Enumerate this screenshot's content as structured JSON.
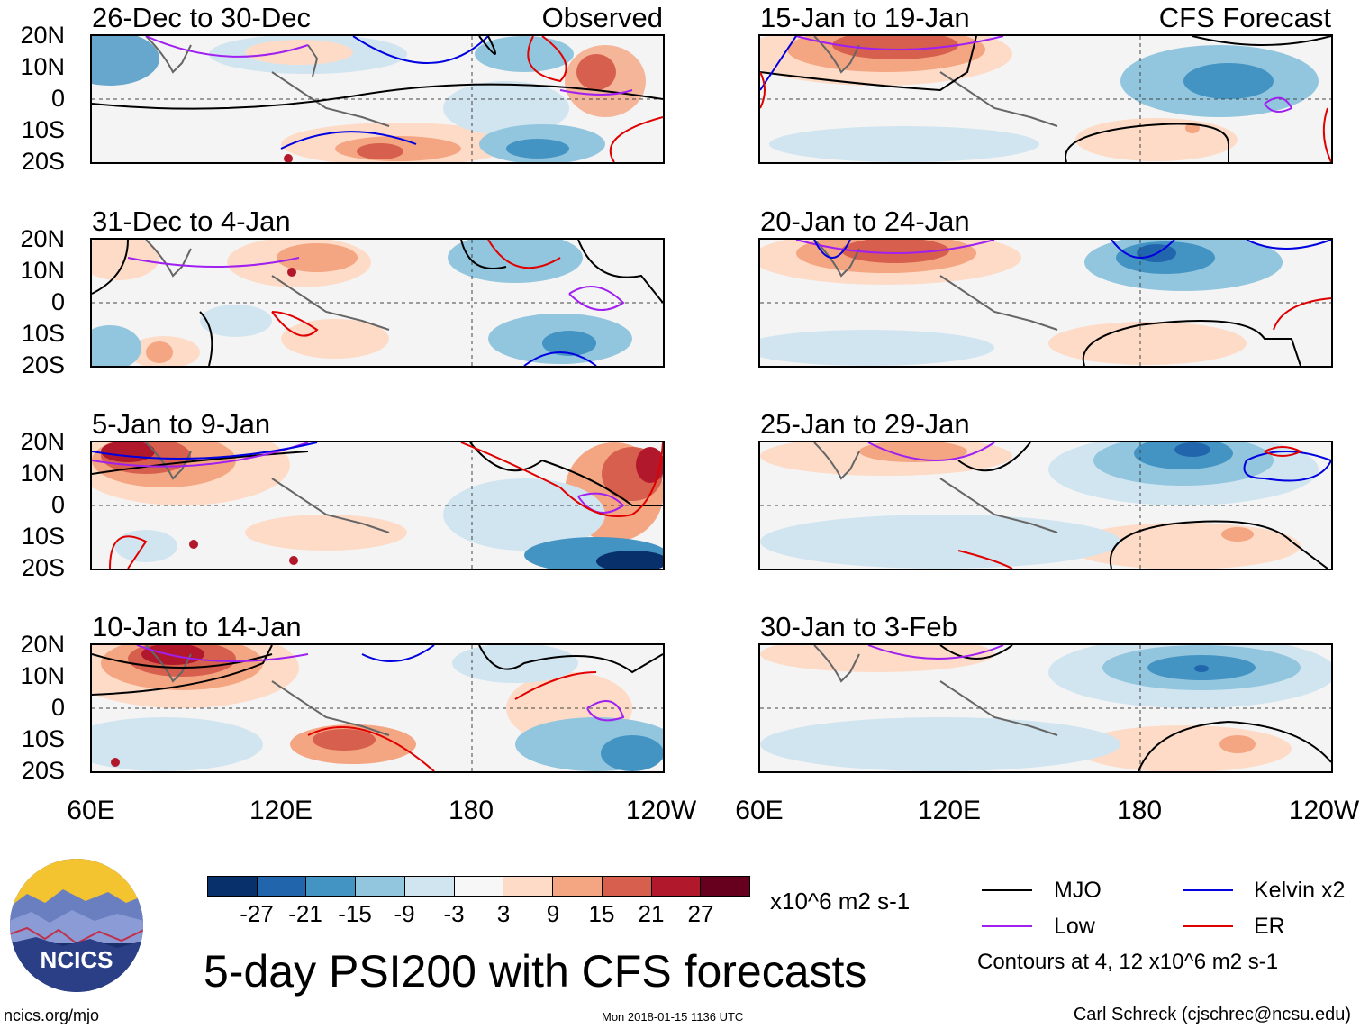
{
  "colors": {
    "mjo": "#000000",
    "low": "#a020f0",
    "kelvin": "#0000e0",
    "er": "#e00000",
    "land": "#666666",
    "background": "#f4f4f4"
  },
  "panels": [
    {
      "title": "26-Dec to 30-Dec",
      "corner": "Observed"
    },
    {
      "title": "31-Dec to 4-Jan",
      "corner": ""
    },
    {
      "title": "5-Jan to 9-Jan",
      "corner": ""
    },
    {
      "title": "10-Jan to 14-Jan",
      "corner": ""
    },
    {
      "title": "15-Jan to 19-Jan",
      "corner": "CFS Forecast"
    },
    {
      "title": "20-Jan to 24-Jan",
      "corner": ""
    },
    {
      "title": "25-Jan to 29-Jan",
      "corner": ""
    },
    {
      "title": "30-Jan to 3-Feb",
      "corner": ""
    }
  ],
  "lat_labels": [
    "20N",
    "10N",
    "0",
    "10S",
    "20S"
  ],
  "lon_labels": [
    "60E",
    "120E",
    "180",
    "120W"
  ],
  "colorbar": {
    "colors": [
      "#08306b",
      "#2166ac",
      "#4393c3",
      "#92c5de",
      "#d1e5f0",
      "#f7f7f7",
      "#fddbc7",
      "#f4a582",
      "#d6604d",
      "#b2182b",
      "#67001f"
    ],
    "labels": [
      "-27",
      "-21",
      "-15",
      "-9",
      "-3",
      "3",
      "9",
      "15",
      "21",
      "27"
    ],
    "units": "x10^6 m2 s-1"
  },
  "legend": {
    "mjo": "MJO",
    "kelvin": "Kelvin x2",
    "low": "Low",
    "er": "ER",
    "contours": "Contours at 4, 12 x10^6 m2 s-1"
  },
  "logo_text": "NCICS",
  "main_title": "5-day PSI200 with CFS forecasts",
  "footer": {
    "left": "ncics.org/mjo",
    "center": "Mon 2018-01-15 1136 UTC",
    "right": "Carl Schreck (cjschrec@ncsu.edu)"
  }
}
